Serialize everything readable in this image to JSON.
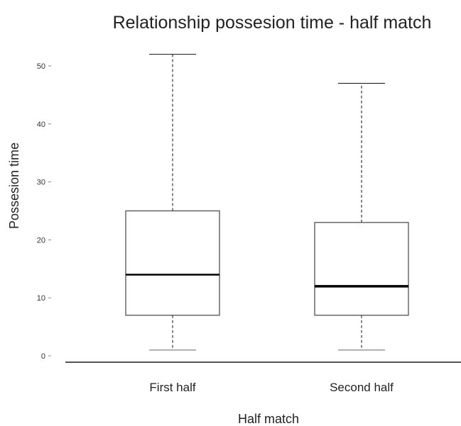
{
  "chart_data": {
    "type": "box",
    "title": "Relationship possesion time - half match",
    "xlabel": "Half match",
    "ylabel": "Possesion time",
    "ylim": [
      -1,
      55
    ],
    "yticks": [
      0,
      10,
      20,
      30,
      40,
      50
    ],
    "categories": [
      "First half",
      "Second half"
    ],
    "boxes": [
      {
        "category": "First half",
        "min": 1,
        "q1": 7,
        "median": 14,
        "q3": 25,
        "max": 52
      },
      {
        "category": "Second half",
        "min": 1,
        "q1": 7,
        "median": 12,
        "q3": 23,
        "max": 47
      }
    ],
    "grid": false
  }
}
